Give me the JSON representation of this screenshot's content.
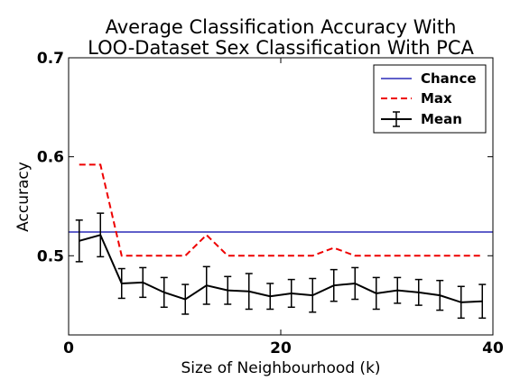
{
  "chart_data": {
    "type": "line",
    "title": [
      "Average Classification Accuracy With",
      "LOO-Dataset Sex Classification With PCA"
    ],
    "xlabel": "Size of Neighbourhood (k)",
    "ylabel": "Accuracy",
    "xlim": [
      0,
      40
    ],
    "ylim": [
      0.42,
      0.7
    ],
    "xticks": [
      0,
      20,
      40
    ],
    "yticks": [
      0.5,
      0.6,
      0.7
    ],
    "legend_position": "top-right",
    "grid": false,
    "series": [
      {
        "name": "Chance",
        "color": "#0000aa",
        "style": "solid",
        "constant": 0.524
      },
      {
        "name": "Max",
        "color": "#ee0000",
        "style": "dashed",
        "x": [
          1,
          3,
          5,
          7,
          9,
          11,
          13,
          15,
          17,
          19,
          21,
          23,
          25,
          27,
          29,
          31,
          33,
          35,
          37,
          39
        ],
        "y": [
          0.592,
          0.592,
          0.5,
          0.5,
          0.5,
          0.5,
          0.521,
          0.5,
          0.5,
          0.5,
          0.5,
          0.5,
          0.508,
          0.5,
          0.5,
          0.5,
          0.5,
          0.5,
          0.5,
          0.5
        ]
      },
      {
        "name": "Mean",
        "color": "#000000",
        "style": "solid",
        "x": [
          1,
          3,
          5,
          7,
          9,
          11,
          13,
          15,
          17,
          19,
          21,
          23,
          25,
          27,
          29,
          31,
          33,
          35,
          37,
          39
        ],
        "y": [
          0.515,
          0.521,
          0.472,
          0.473,
          0.463,
          0.456,
          0.47,
          0.465,
          0.464,
          0.459,
          0.462,
          0.46,
          0.47,
          0.472,
          0.462,
          0.465,
          0.463,
          0.46,
          0.453,
          0.454
        ],
        "err": [
          0.021,
          0.022,
          0.015,
          0.015,
          0.015,
          0.015,
          0.019,
          0.014,
          0.018,
          0.013,
          0.014,
          0.017,
          0.016,
          0.016,
          0.016,
          0.013,
          0.013,
          0.015,
          0.016,
          0.017
        ]
      }
    ]
  }
}
